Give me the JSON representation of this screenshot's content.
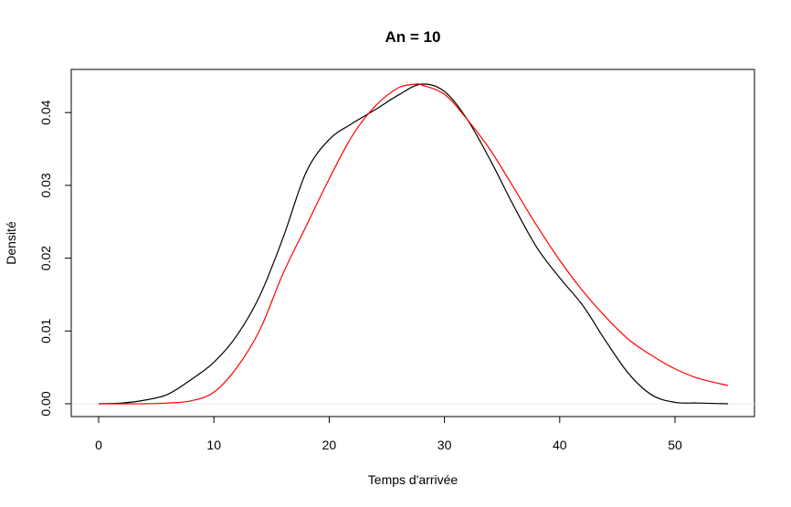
{
  "chart_data": {
    "type": "line",
    "title": "An = 10",
    "xlabel": "Temps d'arrivée",
    "ylabel": "Densité",
    "xlim": [
      0,
      55
    ],
    "ylim": [
      0,
      0.044
    ],
    "x_ticks": [
      0,
      10,
      20,
      30,
      40,
      50
    ],
    "y_ticks": [
      0.0,
      0.01,
      0.02,
      0.03,
      0.04
    ],
    "x_tick_labels": [
      "0",
      "10",
      "20",
      "30",
      "40",
      "50"
    ],
    "y_tick_labels": [
      "0.00",
      "0.01",
      "0.02",
      "0.03",
      "0.04"
    ],
    "grid": false,
    "baseline": 0,
    "series": [
      {
        "color": "#000000",
        "x": [
          0,
          2,
          4,
          6,
          8,
          10,
          12,
          14,
          16,
          18,
          20,
          22,
          24,
          26,
          28,
          30,
          32,
          34,
          36,
          38,
          40,
          42,
          44,
          46,
          48,
          50,
          52,
          54.6
        ],
        "y": [
          0.0,
          0.0001,
          0.0005,
          0.0013,
          0.0033,
          0.0057,
          0.0094,
          0.0149,
          0.0228,
          0.0318,
          0.0363,
          0.0385,
          0.0404,
          0.0424,
          0.0439,
          0.0429,
          0.039,
          0.0334,
          0.0272,
          0.0215,
          0.0173,
          0.0135,
          0.0086,
          0.0041,
          0.0012,
          0.0002,
          0.0001,
          0.0
        ]
      },
      {
        "color": "#ff0000",
        "x": [
          0,
          2,
          4,
          6,
          8,
          10,
          12,
          14,
          16,
          18,
          20,
          22,
          24,
          26,
          27.5,
          28,
          30,
          32,
          34,
          36,
          38,
          40,
          42,
          44,
          46,
          48,
          50,
          52,
          54.6
        ],
        "y": [
          0.0,
          0.0,
          0.0,
          0.0001,
          0.0004,
          0.0016,
          0.005,
          0.0102,
          0.0179,
          0.0244,
          0.0309,
          0.0368,
          0.0409,
          0.0434,
          0.0439,
          0.0438,
          0.0425,
          0.039,
          0.0348,
          0.0297,
          0.0245,
          0.0197,
          0.0155,
          0.0119,
          0.0088,
          0.0066,
          0.0048,
          0.0035,
          0.0025
        ]
      }
    ]
  }
}
